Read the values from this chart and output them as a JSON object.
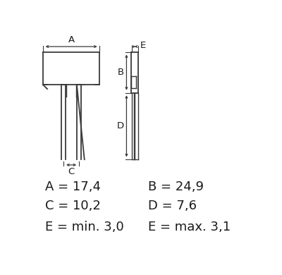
{
  "bg_color": "#ffffff",
  "line_color": "#3a3a3a",
  "text_color": "#1a1a1a",
  "labels_left": [
    {
      "text": "A = 17,4",
      "xf": 0.045,
      "yf": 0.275
    },
    {
      "text": "C = 10,2",
      "xf": 0.045,
      "yf": 0.185
    },
    {
      "text": "E = min. 3,0",
      "xf": 0.045,
      "yf": 0.085
    }
  ],
  "labels_right": [
    {
      "text": "B = 24,9",
      "xf": 0.515,
      "yf": 0.275
    },
    {
      "text": "D = 7,6",
      "xf": 0.515,
      "yf": 0.185
    },
    {
      "text": "E = max. 3,1",
      "xf": 0.515,
      "yf": 0.085
    }
  ],
  "label_fontsize": 13.0,
  "dim_label_fontsize": 9.5
}
